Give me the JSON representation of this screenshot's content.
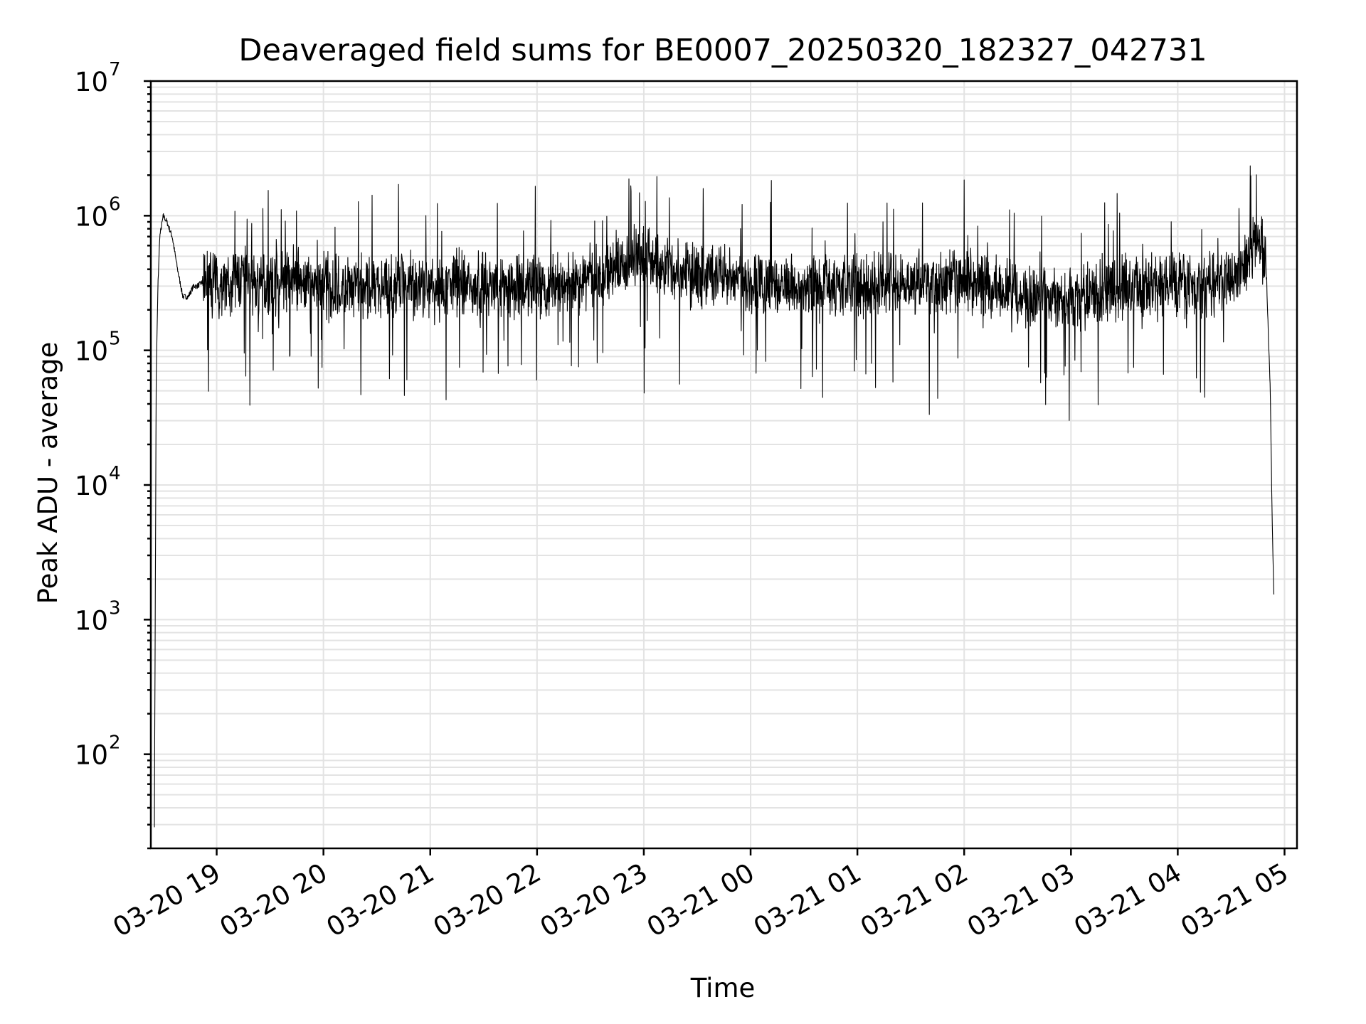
{
  "chart_data": {
    "type": "line",
    "title": "Deaveraged field sums for BE0007_20250320_182327_042731",
    "xlabel": "Time",
    "ylabel": "Peak ADU - average",
    "y_scale": "log",
    "ylim": [
      20,
      10000000
    ],
    "xlim": [
      "2025-03-20 18:23",
      "2025-03-21 05:07"
    ],
    "grid": true,
    "line_color": "#000000",
    "x_ticks": [
      {
        "value": "2025-03-20 19:00",
        "label": "03-20 19"
      },
      {
        "value": "2025-03-20 20:00",
        "label": "03-20 20"
      },
      {
        "value": "2025-03-20 21:00",
        "label": "03-20 21"
      },
      {
        "value": "2025-03-20 22:00",
        "label": "03-20 22"
      },
      {
        "value": "2025-03-20 23:00",
        "label": "03-20 23"
      },
      {
        "value": "2025-03-21 00:00",
        "label": "03-21 00"
      },
      {
        "value": "2025-03-21 01:00",
        "label": "03-21 01"
      },
      {
        "value": "2025-03-21 02:00",
        "label": "03-21 02"
      },
      {
        "value": "2025-03-21 03:00",
        "label": "03-21 03"
      },
      {
        "value": "2025-03-21 04:00",
        "label": "03-21 04"
      },
      {
        "value": "2025-03-21 05:00",
        "label": "03-21 05"
      }
    ],
    "y_ticks": [
      {
        "value": 100,
        "base": "10",
        "exp": "2"
      },
      {
        "value": 1000,
        "base": "10",
        "exp": "3"
      },
      {
        "value": 10000,
        "base": "10",
        "exp": "4"
      },
      {
        "value": 100000,
        "base": "10",
        "exp": "5"
      },
      {
        "value": 1000000,
        "base": "10",
        "exp": "6"
      },
      {
        "value": 10000000,
        "base": "10",
        "exp": "7"
      }
    ],
    "series": [
      {
        "x": [
          "2025-03-20 18:25",
          "2025-03-20 18:26",
          "2025-03-20 18:27",
          "2025-03-20 18:28",
          "2025-03-20 18:30",
          "2025-03-20 18:32",
          "2025-03-20 18:35",
          "2025-03-20 18:38",
          "2025-03-20 18:41",
          "2025-03-20 18:44",
          "2025-03-20 18:47",
          "2025-03-20 18:49",
          "2025-03-20 18:52",
          "2025-03-20 18:55",
          "2025-03-20 19:00",
          "2025-03-20 19:07",
          "2025-03-20 19:15",
          "2025-03-20 19:25",
          "2025-03-20 19:35",
          "2025-03-20 19:45",
          "2025-03-20 20:00",
          "2025-03-20 20:15",
          "2025-03-20 20:30",
          "2025-03-20 20:45",
          "2025-03-20 21:00",
          "2025-03-20 21:15",
          "2025-03-20 21:30",
          "2025-03-20 21:45",
          "2025-03-20 22:00",
          "2025-03-20 22:15",
          "2025-03-20 22:30",
          "2025-03-20 22:45",
          "2025-03-20 23:00",
          "2025-03-20 23:15",
          "2025-03-20 23:30",
          "2025-03-20 23:45",
          "2025-03-21 00:00",
          "2025-03-21 00:15",
          "2025-03-21 00:30",
          "2025-03-21 00:45",
          "2025-03-21 01:00",
          "2025-03-21 01:15",
          "2025-03-21 01:30",
          "2025-03-21 01:45",
          "2025-03-21 02:00",
          "2025-03-21 02:15",
          "2025-03-21 02:30",
          "2025-03-21 02:45",
          "2025-03-21 03:00",
          "2025-03-21 03:15",
          "2025-03-21 03:30",
          "2025-03-21 03:45",
          "2025-03-21 04:00",
          "2025-03-21 04:15",
          "2025-03-21 04:30",
          "2025-03-21 04:40",
          "2025-03-21 04:45",
          "2025-03-21 04:48",
          "2025-03-21 04:50",
          "2025-03-21 04:52",
          "2025-03-21 04:53",
          "2025-03-21 04:54"
        ],
        "values": [
          30,
          60000,
          300000,
          700000,
          1000000,
          900000,
          700000,
          400000,
          250000,
          250000,
          300000,
          300000,
          320000,
          350000,
          300000,
          320000,
          350000,
          300000,
          320000,
          330000,
          300000,
          280000,
          300000,
          300000,
          280000,
          320000,
          300000,
          300000,
          280000,
          320000,
          350000,
          400000,
          480000,
          400000,
          360000,
          350000,
          320000,
          300000,
          300000,
          320000,
          290000,
          320000,
          330000,
          310000,
          320000,
          300000,
          280000,
          250000,
          230000,
          260000,
          300000,
          300000,
          300000,
          300000,
          350000,
          500000,
          700000,
          700000,
          300000,
          50000,
          6000,
          1500
        ]
      }
    ]
  }
}
